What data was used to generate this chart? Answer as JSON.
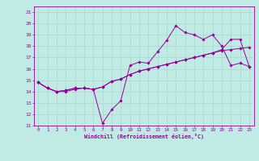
{
  "xlabel": "Windchill (Refroidissement éolien,°C)",
  "bg_color": "#c0eae4",
  "grid_color": "#a8d8d0",
  "line_color": "#990099",
  "x_values": [
    0,
    1,
    2,
    3,
    4,
    5,
    6,
    7,
    8,
    9,
    10,
    11,
    12,
    13,
    14,
    15,
    16,
    17,
    18,
    19,
    20,
    21,
    22,
    23
  ],
  "series1": [
    14.8,
    14.3,
    14.0,
    14.0,
    14.2,
    14.3,
    14.2,
    11.2,
    12.4,
    13.2,
    16.3,
    16.6,
    16.5,
    17.5,
    18.5,
    19.8,
    19.2,
    19.0,
    18.6,
    19.0,
    18.0,
    16.3,
    16.5,
    16.2
  ],
  "series2": [
    14.8,
    14.3,
    14.0,
    14.1,
    14.3,
    14.3,
    14.2,
    14.4,
    14.9,
    15.1,
    15.5,
    15.8,
    16.0,
    16.2,
    16.4,
    16.6,
    16.8,
    17.0,
    17.2,
    17.4,
    17.6,
    17.7,
    17.8,
    17.9
  ],
  "series3": [
    14.8,
    14.3,
    14.0,
    14.1,
    14.3,
    14.3,
    14.2,
    14.4,
    14.9,
    15.1,
    15.5,
    15.8,
    16.0,
    16.2,
    16.4,
    16.6,
    16.8,
    17.0,
    17.2,
    17.4,
    17.7,
    18.6,
    18.6,
    16.2
  ],
  "xlim": [
    -0.5,
    23.5
  ],
  "ylim": [
    11,
    21.5
  ],
  "yticks": [
    11,
    12,
    13,
    14,
    15,
    16,
    17,
    18,
    19,
    20,
    21
  ],
  "xticks": [
    0,
    1,
    2,
    3,
    4,
    5,
    6,
    7,
    8,
    9,
    10,
    11,
    12,
    13,
    14,
    15,
    16,
    17,
    18,
    19,
    20,
    21,
    22,
    23
  ]
}
